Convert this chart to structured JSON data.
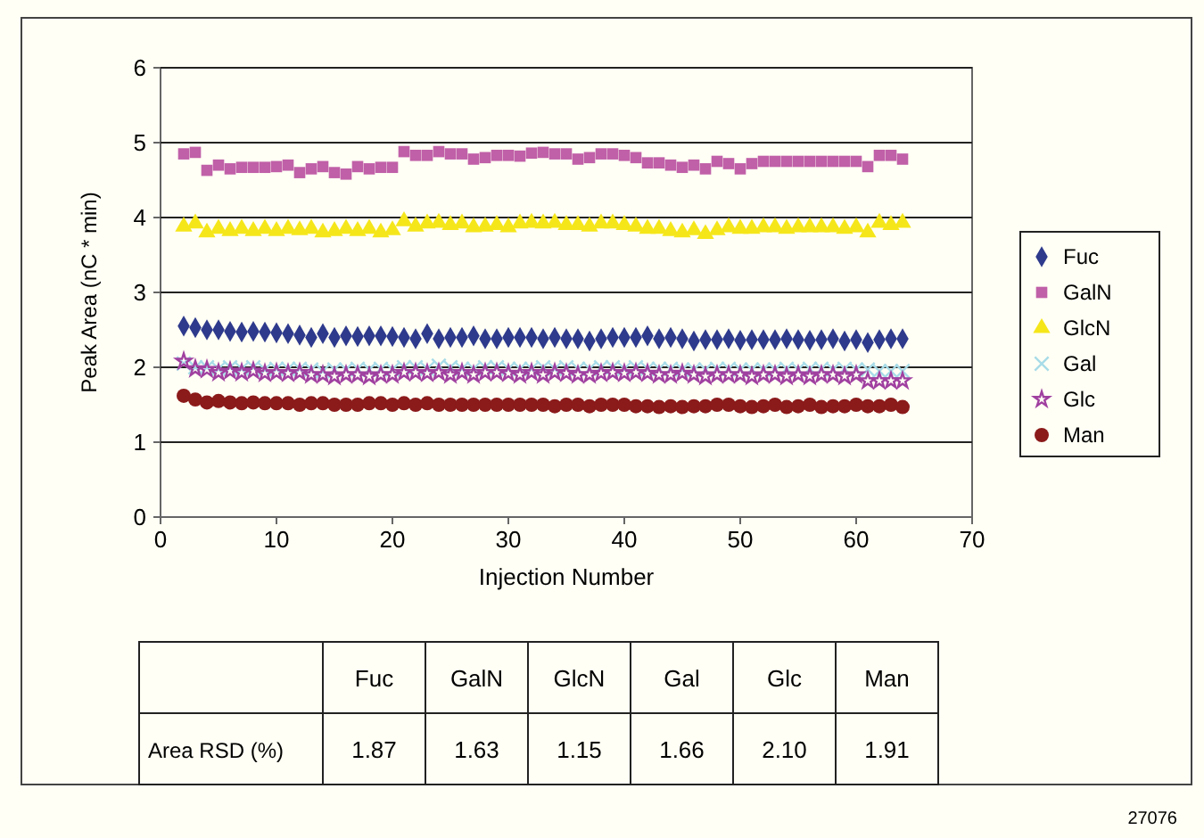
{
  "chart_data": [
    {
      "type": "scatter",
      "xlabel": "Injection Number",
      "ylabel": "Peak Area (nC * min)",
      "xlim": [
        0,
        70
      ],
      "xticks": [
        0,
        10,
        20,
        30,
        40,
        50,
        60,
        70
      ],
      "ylim": [
        0,
        6
      ],
      "yticks": [
        0,
        1,
        2,
        3,
        4,
        5,
        6
      ],
      "grid": "y",
      "legend": "right",
      "annotations": [
        "27076"
      ],
      "x": [
        2,
        3,
        4,
        5,
        6,
        7,
        8,
        9,
        10,
        11,
        12,
        13,
        14,
        15,
        16,
        17,
        18,
        19,
        20,
        21,
        22,
        23,
        24,
        25,
        26,
        27,
        28,
        29,
        30,
        31,
        32,
        33,
        34,
        35,
        36,
        37,
        38,
        39,
        40,
        41,
        42,
        43,
        44,
        45,
        46,
        47,
        48,
        49,
        50,
        51,
        52,
        53,
        54,
        55,
        56,
        57,
        58,
        59,
        60,
        61,
        62,
        63,
        64
      ],
      "series": [
        {
          "name": "Fuc",
          "color": "#2e3a8c",
          "marker": "diamond",
          "values": [
            2.55,
            2.53,
            2.5,
            2.5,
            2.48,
            2.47,
            2.48,
            2.47,
            2.46,
            2.45,
            2.43,
            2.4,
            2.45,
            2.4,
            2.42,
            2.41,
            2.42,
            2.42,
            2.41,
            2.4,
            2.38,
            2.45,
            2.38,
            2.4,
            2.4,
            2.42,
            2.38,
            2.38,
            2.4,
            2.4,
            2.4,
            2.38,
            2.4,
            2.38,
            2.38,
            2.35,
            2.38,
            2.4,
            2.4,
            2.4,
            2.42,
            2.38,
            2.4,
            2.38,
            2.35,
            2.37,
            2.37,
            2.38,
            2.36,
            2.37,
            2.37,
            2.37,
            2.38,
            2.37,
            2.36,
            2.37,
            2.38,
            2.35,
            2.37,
            2.33,
            2.37,
            2.38,
            2.38
          ]
        },
        {
          "name": "GalN",
          "color": "#c060a8",
          "marker": "square",
          "values": [
            4.85,
            4.87,
            4.63,
            4.7,
            4.65,
            4.67,
            4.67,
            4.67,
            4.68,
            4.7,
            4.6,
            4.65,
            4.68,
            4.6,
            4.58,
            4.68,
            4.65,
            4.67,
            4.67,
            4.88,
            4.83,
            4.83,
            4.88,
            4.85,
            4.85,
            4.78,
            4.8,
            4.83,
            4.83,
            4.82,
            4.86,
            4.87,
            4.85,
            4.85,
            4.78,
            4.8,
            4.85,
            4.85,
            4.83,
            4.8,
            4.73,
            4.73,
            4.7,
            4.67,
            4.7,
            4.65,
            4.75,
            4.72,
            4.65,
            4.72,
            4.75,
            4.75,
            4.75,
            4.75,
            4.75,
            4.75,
            4.75,
            4.75,
            4.75,
            4.68,
            4.83,
            4.83,
            4.78
          ]
        },
        {
          "name": "GlcN",
          "color": "#f5e61a",
          "marker": "triangle",
          "values": [
            3.88,
            3.92,
            3.8,
            3.85,
            3.82,
            3.85,
            3.82,
            3.85,
            3.82,
            3.85,
            3.83,
            3.85,
            3.8,
            3.82,
            3.85,
            3.82,
            3.85,
            3.8,
            3.83,
            3.95,
            3.88,
            3.92,
            3.93,
            3.9,
            3.92,
            3.87,
            3.88,
            3.9,
            3.87,
            3.92,
            3.93,
            3.92,
            3.93,
            3.9,
            3.9,
            3.88,
            3.92,
            3.92,
            3.9,
            3.88,
            3.85,
            3.85,
            3.82,
            3.8,
            3.83,
            3.78,
            3.83,
            3.87,
            3.85,
            3.85,
            3.87,
            3.87,
            3.85,
            3.87,
            3.87,
            3.87,
            3.87,
            3.85,
            3.87,
            3.8,
            3.93,
            3.9,
            3.93
          ]
        },
        {
          "name": "Gal",
          "color": "#a8dce8",
          "marker": "cross",
          "values": [
            2.05,
            2.0,
            2.0,
            1.98,
            2.0,
            1.98,
            2.0,
            1.97,
            1.98,
            1.98,
            1.98,
            1.97,
            1.95,
            1.97,
            1.97,
            1.98,
            1.97,
            1.98,
            1.97,
            2.0,
            2.0,
            1.98,
            2.02,
            2.0,
            1.98,
            1.98,
            2.0,
            2.0,
            1.98,
            1.98,
            1.98,
            2.0,
            1.98,
            2.0,
            1.98,
            1.98,
            2.0,
            2.0,
            1.98,
            2.0,
            1.98,
            1.98,
            1.98,
            1.97,
            1.97,
            1.97,
            1.98,
            1.98,
            1.97,
            1.97,
            1.97,
            1.97,
            1.98,
            1.97,
            1.98,
            1.98,
            1.97,
            1.98,
            1.97,
            1.97,
            1.95,
            1.95,
            1.95
          ]
        },
        {
          "name": "Glc",
          "color": "#a040a0",
          "marker": "star",
          "values": [
            2.08,
            1.98,
            1.97,
            1.93,
            1.95,
            1.93,
            1.95,
            1.92,
            1.93,
            1.92,
            1.93,
            1.9,
            1.9,
            1.88,
            1.9,
            1.9,
            1.88,
            1.9,
            1.9,
            1.93,
            1.93,
            1.92,
            1.93,
            1.9,
            1.93,
            1.9,
            1.93,
            1.93,
            1.92,
            1.9,
            1.93,
            1.9,
            1.93,
            1.92,
            1.9,
            1.9,
            1.92,
            1.93,
            1.92,
            1.93,
            1.92,
            1.9,
            1.9,
            1.92,
            1.9,
            1.88,
            1.9,
            1.9,
            1.9,
            1.88,
            1.9,
            1.9,
            1.88,
            1.9,
            1.88,
            1.9,
            1.9,
            1.88,
            1.9,
            1.82,
            1.82,
            1.82,
            1.82
          ]
        },
        {
          "name": "Man",
          "color": "#8b1a1a",
          "marker": "circle",
          "values": [
            1.62,
            1.57,
            1.53,
            1.55,
            1.53,
            1.52,
            1.53,
            1.52,
            1.52,
            1.52,
            1.5,
            1.52,
            1.52,
            1.5,
            1.5,
            1.5,
            1.52,
            1.52,
            1.5,
            1.52,
            1.5,
            1.52,
            1.5,
            1.5,
            1.5,
            1.5,
            1.5,
            1.5,
            1.5,
            1.5,
            1.5,
            1.5,
            1.48,
            1.5,
            1.5,
            1.48,
            1.5,
            1.5,
            1.5,
            1.48,
            1.48,
            1.47,
            1.48,
            1.47,
            1.48,
            1.48,
            1.5,
            1.5,
            1.48,
            1.47,
            1.48,
            1.5,
            1.47,
            1.48,
            1.5,
            1.47,
            1.48,
            1.48,
            1.5,
            1.48,
            1.48,
            1.5,
            1.47
          ]
        }
      ]
    },
    {
      "type": "other",
      "ylabel": "Area RSD (%)",
      "categories": [
        "Fuc",
        "GalN",
        "GlcN",
        "Gal",
        "Glc",
        "Man"
      ],
      "value_labels": [
        "1.87",
        "1.63",
        "1.15",
        "1.66",
        "2.10",
        "1.91"
      ]
    }
  ]
}
